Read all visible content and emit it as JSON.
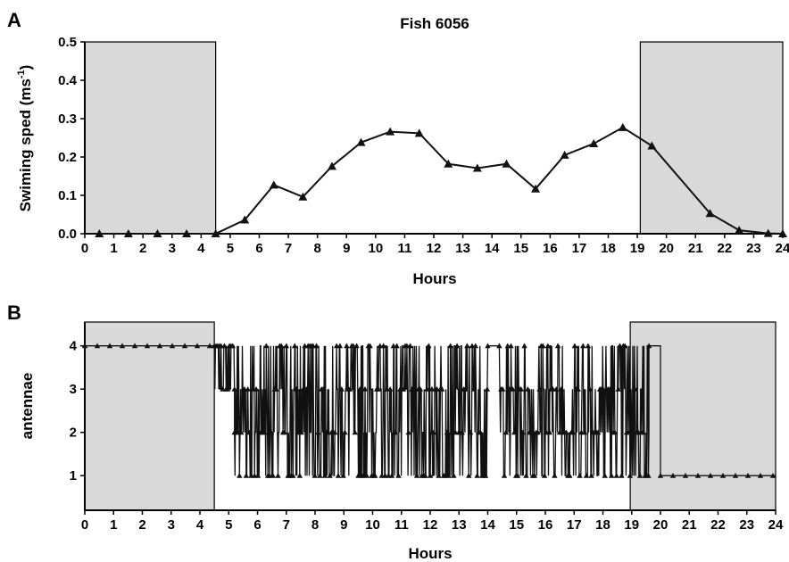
{
  "chart_data": [
    {
      "panel": "A",
      "type": "line",
      "title": "Fish 6056",
      "xlabel": "Hours",
      "ylabel": "Swiming sped (ms",
      "ylabel_sup": "-1",
      "ylabel_close": ")",
      "xlim": [
        0,
        24
      ],
      "ylim": [
        0,
        0.5
      ],
      "xticks": [
        "0",
        "1",
        "2",
        "3",
        "4",
        "5",
        "6",
        "7",
        "8",
        "9",
        "10",
        "11",
        "12",
        "13",
        "14",
        "15",
        "16",
        "17",
        "18",
        "19",
        "20",
        "21",
        "22",
        "23",
        "24"
      ],
      "yticks": [
        "0.0",
        "0.1",
        "0.2",
        "0.3",
        "0.4",
        "0.5"
      ],
      "shaded_intervals": [
        [
          0,
          4.5
        ],
        [
          19.1,
          24
        ]
      ],
      "marker": "triangle",
      "x": [
        0.5,
        1.5,
        2.5,
        3.5,
        4.5,
        5.5,
        6.5,
        7.5,
        8.5,
        9.5,
        10.5,
        11.5,
        12.5,
        13.5,
        14.5,
        15.5,
        16.5,
        17.5,
        18.5,
        19.5,
        21.5,
        22.5,
        23.5,
        24
      ],
      "y": [
        0.0,
        0.0,
        0.0,
        0.0,
        0.0,
        0.036,
        0.127,
        0.096,
        0.176,
        0.238,
        0.266,
        0.262,
        0.182,
        0.171,
        0.182,
        0.117,
        0.205,
        0.235,
        0.277,
        0.229,
        0.053,
        0.009,
        0.001,
        0.0
      ]
    },
    {
      "panel": "B",
      "type": "line",
      "xlabel": "Hours",
      "ylabel": "antennae",
      "xlim": [
        0,
        24
      ],
      "ylim": [
        0.2,
        4.55
      ],
      "xticks": [
        "0",
        "1",
        "2",
        "3",
        "4",
        "5",
        "6",
        "7",
        "8",
        "9",
        "10",
        "11",
        "12",
        "13",
        "14",
        "15",
        "16",
        "17",
        "18",
        "19",
        "20",
        "21",
        "22",
        "23",
        "24"
      ],
      "yticks": [
        "1",
        "2",
        "3",
        "4"
      ],
      "shaded_intervals": [
        [
          0,
          4.5
        ],
        [
          18.95,
          24
        ]
      ],
      "marker": "triangle",
      "segments": [
        {
          "x": [
            0,
            4.5
          ],
          "pattern": "constant",
          "value": 4
        },
        {
          "x": [
            4.5,
            5.2
          ],
          "pattern": "oscillate",
          "levels": [
            3,
            4
          ]
        },
        {
          "x": [
            5.2,
            14.0
          ],
          "pattern": "oscillate",
          "levels": [
            1,
            2,
            3,
            4
          ]
        },
        {
          "x": [
            14.0,
            14.4
          ],
          "pattern": "constant",
          "value": 4
        },
        {
          "x": [
            14.4,
            19.6
          ],
          "pattern": "oscillate",
          "levels": [
            1,
            2,
            3,
            4
          ]
        },
        {
          "x": [
            19.6,
            20.0
          ],
          "pattern": "constant",
          "value": 4
        },
        {
          "x": [
            20.0,
            24
          ],
          "pattern": "constant",
          "value": 1
        }
      ]
    }
  ]
}
